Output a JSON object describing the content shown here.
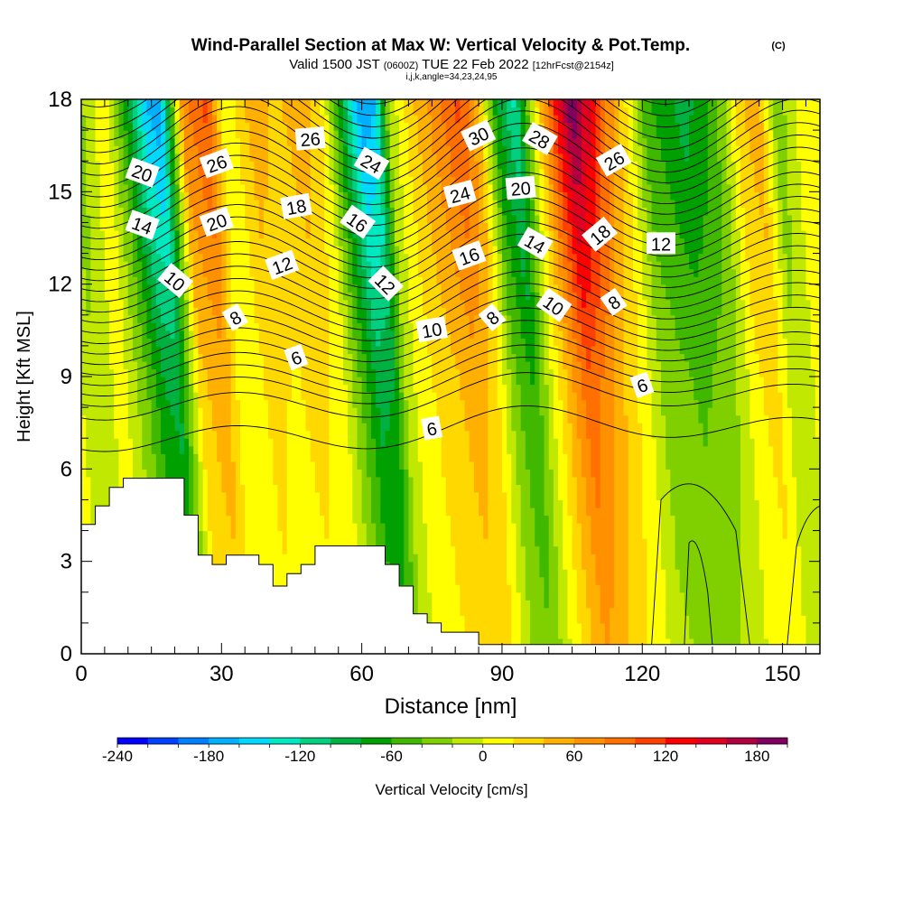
{
  "chart_data": {
    "type": "heatmap",
    "title": "Wind-Parallel Section at Max W: Vertical Velocity & Pot.Temp.",
    "title_mark": "(C)",
    "subtitle": {
      "prefix": "Valid 1500 JST",
      "utc": "(0600Z)",
      "date": "TUE 22 Feb 2022",
      "fcst": "[12hrFcst@2154z]"
    },
    "subtitle2": "i,j,k,angle=34,23,24,95",
    "xlabel": "Distance [nm]",
    "ylabel": "Height [Kft MSL]",
    "xlim": [
      0,
      158
    ],
    "ylim": [
      0,
      18
    ],
    "xticks": [
      0,
      30,
      60,
      90,
      120,
      150
    ],
    "yticks": [
      0,
      3,
      6,
      9,
      12,
      15,
      18
    ],
    "colorbar": {
      "label": "Vertical Velocity [cm/s]",
      "min": -240,
      "max": 200,
      "step": 20,
      "ticks": [
        -240,
        -180,
        -120,
        -60,
        0,
        60,
        120,
        180
      ],
      "colors": [
        "#0000ff",
        "#0040ff",
        "#0080ff",
        "#00b0ff",
        "#00d8ff",
        "#00e8c0",
        "#00d080",
        "#00b040",
        "#00a000",
        "#40b800",
        "#80d000",
        "#c0e800",
        "#ffff00",
        "#ffd800",
        "#ffb000",
        "#ff9000",
        "#ff7000",
        "#ff4000",
        "#ff0000",
        "#e00020",
        "#b00040",
        "#800060"
      ]
    },
    "w_bands": [
      {
        "x": 0,
        "w": 10
      },
      {
        "x": 4,
        "w": -20
      },
      {
        "x": 10,
        "w": 10
      },
      {
        "x": 15,
        "w": -40
      },
      {
        "x": 19,
        "w": -90
      },
      {
        "x": 22,
        "w": -100
      },
      {
        "x": 27,
        "w": 40
      },
      {
        "x": 32,
        "w": 60
      },
      {
        "x": 36,
        "w": 0
      },
      {
        "x": 42,
        "w": 30
      },
      {
        "x": 47,
        "w": 20
      },
      {
        "x": 52,
        "w": 30
      },
      {
        "x": 57,
        "w": 10
      },
      {
        "x": 62,
        "w": -60
      },
      {
        "x": 65,
        "w": -100
      },
      {
        "x": 68,
        "w": -90
      },
      {
        "x": 71,
        "w": -10
      },
      {
        "x": 76,
        "w": 20
      },
      {
        "x": 81,
        "w": 40
      },
      {
        "x": 86,
        "w": 60
      },
      {
        "x": 90,
        "w": 30
      },
      {
        "x": 94,
        "w": -40
      },
      {
        "x": 98,
        "w": -70
      },
      {
        "x": 102,
        "w": 0
      },
      {
        "x": 106,
        "w": 60
      },
      {
        "x": 110,
        "w": 110
      },
      {
        "x": 114,
        "w": 80
      },
      {
        "x": 118,
        "w": 40
      },
      {
        "x": 122,
        "w": 10
      },
      {
        "x": 126,
        "w": -30
      },
      {
        "x": 130,
        "w": -40
      },
      {
        "x": 134,
        "w": -50
      },
      {
        "x": 138,
        "w": -40
      },
      {
        "x": 142,
        "w": -20
      },
      {
        "x": 146,
        "w": 20
      },
      {
        "x": 150,
        "w": 30
      },
      {
        "x": 154,
        "w": -20
      },
      {
        "x": 158,
        "w": 0
      }
    ],
    "terrain": [
      [
        0,
        4.2
      ],
      [
        3,
        4.2
      ],
      [
        3,
        4.8
      ],
      [
        6,
        4.8
      ],
      [
        6,
        5.4
      ],
      [
        9,
        5.4
      ],
      [
        9,
        5.7
      ],
      [
        22,
        5.7
      ],
      [
        22,
        4.5
      ],
      [
        25,
        4.5
      ],
      [
        25,
        3.2
      ],
      [
        28,
        3.2
      ],
      [
        28,
        2.9
      ],
      [
        31,
        2.9
      ],
      [
        31,
        3.2
      ],
      [
        38,
        3.2
      ],
      [
        38,
        2.9
      ],
      [
        41,
        2.9
      ],
      [
        41,
        2.2
      ],
      [
        44,
        2.2
      ],
      [
        44,
        2.6
      ],
      [
        47,
        2.6
      ],
      [
        47,
        2.9
      ],
      [
        50,
        2.9
      ],
      [
        50,
        3.5
      ],
      [
        65,
        3.5
      ],
      [
        65,
        2.9
      ],
      [
        68,
        2.9
      ],
      [
        68,
        2.2
      ],
      [
        71,
        2.2
      ],
      [
        71,
        1.3
      ],
      [
        74,
        1.3
      ],
      [
        74,
        1.0
      ],
      [
        77,
        1.0
      ],
      [
        77,
        0.7
      ],
      [
        80,
        0.7
      ],
      [
        80,
        0.7
      ],
      [
        85,
        0.7
      ],
      [
        85,
        0.3
      ],
      [
        158,
        0.3
      ]
    ],
    "contour_labels": [
      {
        "text": "20",
        "x": 13,
        "y": 15.6,
        "rot": 20
      },
      {
        "text": "14",
        "x": 13,
        "y": 13.9,
        "rot": 20
      },
      {
        "text": "10",
        "x": 20,
        "y": 12.1,
        "rot": 40
      },
      {
        "text": "26",
        "x": 29,
        "y": 15.9,
        "rot": -20
      },
      {
        "text": "20",
        "x": 29,
        "y": 14.0,
        "rot": -20
      },
      {
        "text": "8",
        "x": 33,
        "y": 10.9,
        "rot": -30
      },
      {
        "text": "12",
        "x": 43,
        "y": 12.6,
        "rot": -20
      },
      {
        "text": "18",
        "x": 46,
        "y": 14.5,
        "rot": -10
      },
      {
        "text": "26",
        "x": 49,
        "y": 16.7,
        "rot": -5
      },
      {
        "text": "6",
        "x": 46,
        "y": 9.6,
        "rot": -20
      },
      {
        "text": "24",
        "x": 62,
        "y": 15.9,
        "rot": 30
      },
      {
        "text": "16",
        "x": 59,
        "y": 14.0,
        "rot": 35
      },
      {
        "text": "12",
        "x": 65,
        "y": 12.0,
        "rot": 45
      },
      {
        "text": "10",
        "x": 75,
        "y": 10.5,
        "rot": -10
      },
      {
        "text": "6",
        "x": 75,
        "y": 7.3,
        "rot": -10
      },
      {
        "text": "8",
        "x": 88,
        "y": 10.9,
        "rot": -40
      },
      {
        "text": "16",
        "x": 83,
        "y": 12.9,
        "rot": -20
      },
      {
        "text": "24",
        "x": 81,
        "y": 14.9,
        "rot": -15
      },
      {
        "text": "30",
        "x": 85,
        "y": 16.8,
        "rot": -25
      },
      {
        "text": "20",
        "x": 94,
        "y": 15.1,
        "rot": -5
      },
      {
        "text": "28",
        "x": 98,
        "y": 16.7,
        "rot": 30
      },
      {
        "text": "14",
        "x": 97,
        "y": 13.3,
        "rot": 30
      },
      {
        "text": "10",
        "x": 101,
        "y": 11.3,
        "rot": 35
      },
      {
        "text": "18",
        "x": 111,
        "y": 13.6,
        "rot": -40
      },
      {
        "text": "26",
        "x": 114,
        "y": 16.0,
        "rot": -30
      },
      {
        "text": "8",
        "x": 114,
        "y": 11.4,
        "rot": -35
      },
      {
        "text": "12",
        "x": 124,
        "y": 13.3,
        "rot": 0
      },
      {
        "text": "6",
        "x": 120,
        "y": 8.7,
        "rot": -20
      }
    ]
  }
}
